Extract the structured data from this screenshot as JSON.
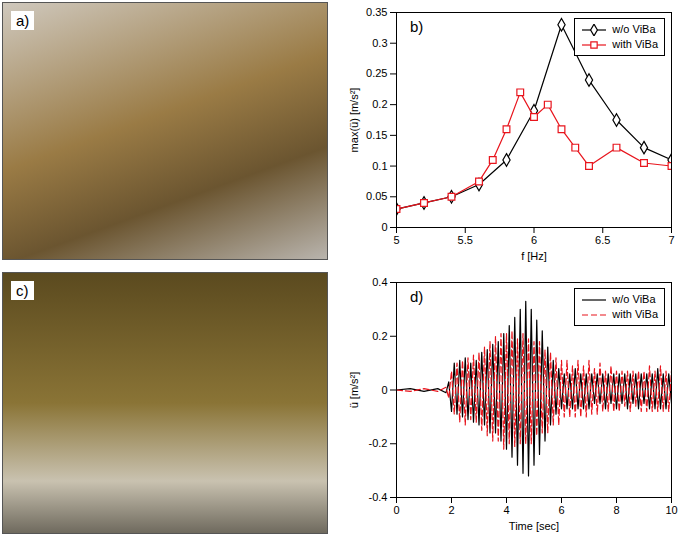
{
  "images": [
    {
      "label": "a)"
    },
    {
      "label": "c)"
    }
  ],
  "chart_data": [
    {
      "type": "line",
      "annotations": [
        "b)"
      ],
      "x_label": "f [Hz]",
      "y_label": "max(ü) [m/s²]",
      "xlim": [
        5,
        7
      ],
      "xticks": [
        5,
        5.5,
        6,
        6.5,
        7
      ],
      "ylim": [
        0,
        0.35
      ],
      "yticks": [
        0,
        0.05,
        0.1,
        0.15,
        0.2,
        0.25,
        0.3,
        0.35
      ],
      "legend": "top-right",
      "series": [
        {
          "name": "w/o ViBa",
          "color": "#000000",
          "marker": "diamond",
          "line_style": "solid",
          "x": [
            5,
            5.2,
            5.4,
            5.6,
            5.8,
            6.0,
            6.2,
            6.4,
            6.6,
            6.8,
            7.0
          ],
          "values": [
            0.03,
            0.04,
            0.05,
            0.07,
            0.11,
            0.19,
            0.33,
            0.24,
            0.175,
            0.13,
            0.11
          ]
        },
        {
          "name": "with ViBa",
          "color": "#e8141c",
          "marker": "square",
          "line_style": "solid",
          "x": [
            5,
            5.2,
            5.4,
            5.6,
            5.7,
            5.8,
            5.9,
            6.0,
            6.1,
            6.2,
            6.3,
            6.4,
            6.6,
            6.8,
            7.0
          ],
          "values": [
            0.03,
            0.04,
            0.05,
            0.075,
            0.11,
            0.16,
            0.22,
            0.18,
            0.2,
            0.16,
            0.13,
            0.1,
            0.13,
            0.105,
            0.1
          ]
        }
      ]
    },
    {
      "type": "line",
      "annotations": [
        "d)"
      ],
      "x_label": "Time [sec]",
      "y_label": "ü [m/s²]",
      "xlim": [
        0,
        10
      ],
      "xticks": [
        0,
        2,
        4,
        6,
        8,
        10
      ],
      "ylim": [
        -0.4,
        0.4
      ],
      "yticks": [
        -0.4,
        -0.2,
        0,
        0.2,
        0.4
      ],
      "legend": "top-right",
      "x": [
        0,
        0.5,
        1,
        1.5,
        1.8,
        1.9,
        2,
        2.1,
        2.2,
        2.3,
        2.4,
        2.5,
        2.6,
        2.7,
        2.8,
        2.9,
        3,
        3.1,
        3.2,
        3.3,
        3.4,
        3.5,
        3.6,
        3.7,
        3.8,
        3.9,
        4,
        4.1,
        4.2,
        4.3,
        4.4,
        4.5,
        4.6,
        4.7,
        4.8,
        4.9,
        5,
        5.1,
        5.2,
        5.3,
        5.4,
        5.5,
        5.6,
        5.7,
        5.8,
        5.9,
        6,
        6.1,
        6.2,
        6.3,
        6.4,
        6.5,
        6.6,
        6.7,
        6.8,
        6.9,
        7,
        7.1,
        7.2,
        7.3,
        7.4,
        7.5,
        7.6,
        7.7,
        7.8,
        7.9,
        8,
        8.1,
        8.2,
        8.3,
        8.4,
        8.5,
        8.6,
        8.7,
        8.8,
        8.9,
        9,
        9.1,
        9.2,
        9.3,
        9.4,
        9.5,
        9.6,
        9.7,
        9.8,
        9.9,
        10
      ],
      "series": [
        {
          "name": "w/o ViBa",
          "color": "#000000",
          "line_style": "solid",
          "values": [
            0,
            0.005,
            -0.005,
            0.005,
            -0.01,
            0.03,
            -0.08,
            0.1,
            -0.09,
            0.11,
            -0.1,
            0.12,
            -0.11,
            0.1,
            -0.12,
            0.11,
            -0.13,
            0.14,
            -0.13,
            0.15,
            -0.16,
            0.17,
            -0.16,
            0.18,
            -0.19,
            0.21,
            -0.22,
            0.24,
            -0.25,
            0.27,
            -0.28,
            0.3,
            -0.31,
            0.33,
            -0.32,
            0.3,
            -0.28,
            0.26,
            -0.24,
            0.22,
            -0.19,
            0.16,
            -0.13,
            0.11,
            -0.09,
            0.08,
            -0.07,
            0.06,
            -0.07,
            0.06,
            -0.07,
            0.08,
            -0.07,
            0.06,
            -0.07,
            0.06,
            -0.07,
            0.06,
            -0.05,
            0.06,
            -0.05,
            0.06,
            -0.07,
            0.06,
            -0.05,
            0.06,
            -0.07,
            0.06,
            -0.05,
            0.06,
            -0.07,
            0.06,
            -0.05,
            0.06,
            -0.07,
            0.06,
            -0.05,
            0.06,
            -0.07,
            0.06,
            -0.07,
            0.08,
            -0.07,
            0.06,
            -0.07,
            0.06,
            -0.05
          ]
        },
        {
          "name": "with ViBa",
          "color": "#e8141c",
          "line_style": "dashed",
          "values": [
            0,
            -0.005,
            0.005,
            -0.005,
            0.01,
            -0.03,
            0.07,
            -0.09,
            0.1,
            -0.12,
            0.11,
            -0.13,
            0.12,
            -0.11,
            0.13,
            -0.12,
            0.14,
            -0.15,
            0.16,
            -0.17,
            0.18,
            -0.19,
            0.2,
            -0.19,
            0.21,
            -0.22,
            0.21,
            -0.2,
            0.22,
            -0.21,
            0.19,
            -0.2,
            0.21,
            -0.2,
            0.19,
            -0.2,
            0.18,
            -0.17,
            0.18,
            -0.16,
            0.15,
            -0.16,
            0.14,
            -0.13,
            0.12,
            -0.13,
            0.11,
            -0.1,
            0.11,
            -0.1,
            0.09,
            -0.1,
            0.11,
            -0.1,
            0.09,
            -0.1,
            0.11,
            -0.09,
            0.08,
            -0.09,
            0.1,
            -0.08,
            0.07,
            -0.08,
            0.09,
            -0.08,
            0.07,
            -0.08,
            0.07,
            -0.06,
            0.07,
            -0.08,
            0.07,
            -0.06,
            0.07,
            -0.08,
            0.07,
            -0.08,
            0.09,
            -0.08,
            0.07,
            -0.08,
            0.09,
            -0.08,
            0.07,
            -0.08,
            0.07
          ]
        }
      ]
    }
  ]
}
